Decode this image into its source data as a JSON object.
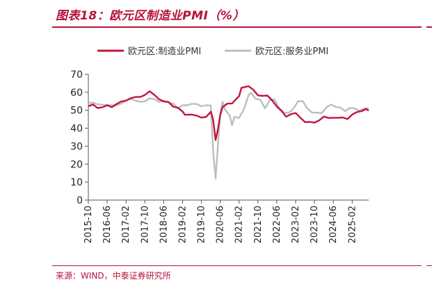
{
  "header": {
    "title": "图表18：欧元区制造业PMI（%）"
  },
  "footer": {
    "source": "来源：WIND，中泰证券研究所"
  },
  "colors": {
    "accent": "#b5123a",
    "manufacturing": "#c0143c",
    "services": "#bdbdbd"
  },
  "chart_data": {
    "type": "line",
    "title": "",
    "xlabel": "",
    "ylabel": "",
    "ylim": [
      0,
      70
    ],
    "yticks": [
      0,
      10,
      20,
      30,
      40,
      50,
      60,
      70
    ],
    "grid": false,
    "legend": "top",
    "xlim": [
      "2015-10",
      "2025-09"
    ],
    "x_ticks": [
      "2015-10",
      "2016-06",
      "2017-02",
      "2017-10",
      "2018-06",
      "2019-02",
      "2019-10",
      "2020-06",
      "2021-02",
      "2021-10",
      "2022-06",
      "2023-02",
      "2023-10",
      "2024-06",
      "2025-02"
    ],
    "series": [
      {
        "name": "欧元区:制造业PMI",
        "color": "#c0143c",
        "points": [
          [
            "2015-10",
            52.3
          ],
          [
            "2015-12",
            53.2
          ],
          [
            "2016-02",
            51.2
          ],
          [
            "2016-04",
            51.7
          ],
          [
            "2016-06",
            52.8
          ],
          [
            "2016-08",
            51.7
          ],
          [
            "2016-10",
            53.5
          ],
          [
            "2016-12",
            54.9
          ],
          [
            "2017-02",
            55.4
          ],
          [
            "2017-04",
            56.7
          ],
          [
            "2017-06",
            57.4
          ],
          [
            "2017-08",
            57.4
          ],
          [
            "2017-10",
            58.5
          ],
          [
            "2017-12",
            60.6
          ],
          [
            "2018-02",
            58.6
          ],
          [
            "2018-04",
            56.2
          ],
          [
            "2018-06",
            54.9
          ],
          [
            "2018-08",
            54.6
          ],
          [
            "2018-10",
            52.0
          ],
          [
            "2018-12",
            51.4
          ],
          [
            "2019-02",
            49.3
          ],
          [
            "2019-03",
            47.5
          ],
          [
            "2019-06",
            47.6
          ],
          [
            "2019-08",
            47.0
          ],
          [
            "2019-10",
            45.9
          ],
          [
            "2019-12",
            46.3
          ],
          [
            "2020-02",
            49.2
          ],
          [
            "2020-03",
            44.5
          ],
          [
            "2020-04",
            33.4
          ],
          [
            "2020-05",
            39.4
          ],
          [
            "2020-06",
            47.4
          ],
          [
            "2020-07",
            51.8
          ],
          [
            "2020-09",
            53.7
          ],
          [
            "2020-11",
            53.8
          ],
          [
            "2020-12",
            55.2
          ],
          [
            "2021-02",
            57.9
          ],
          [
            "2021-03",
            62.5
          ],
          [
            "2021-05",
            63.1
          ],
          [
            "2021-06",
            63.4
          ],
          [
            "2021-08",
            61.4
          ],
          [
            "2021-10",
            58.3
          ],
          [
            "2021-12",
            58.0
          ],
          [
            "2022-02",
            58.2
          ],
          [
            "2022-04",
            55.5
          ],
          [
            "2022-06",
            52.1
          ],
          [
            "2022-08",
            49.6
          ],
          [
            "2022-10",
            46.4
          ],
          [
            "2022-12",
            47.8
          ],
          [
            "2023-02",
            48.5
          ],
          [
            "2023-04",
            45.8
          ],
          [
            "2023-06",
            43.4
          ],
          [
            "2023-08",
            43.5
          ],
          [
            "2023-10",
            43.1
          ],
          [
            "2023-12",
            44.4
          ],
          [
            "2024-02",
            46.5
          ],
          [
            "2024-04",
            45.7
          ],
          [
            "2024-06",
            45.8
          ],
          [
            "2024-08",
            45.8
          ],
          [
            "2024-10",
            46.0
          ],
          [
            "2024-12",
            45.1
          ],
          [
            "2025-02",
            47.6
          ],
          [
            "2025-04",
            49.0
          ],
          [
            "2025-06",
            49.5
          ],
          [
            "2025-08",
            50.7
          ],
          [
            "2025-09",
            49.8
          ]
        ]
      },
      {
        "name": "欧元区:服务业PMI",
        "color": "#bdbdbd",
        "points": [
          [
            "2015-10",
            54.1
          ],
          [
            "2015-12",
            54.2
          ],
          [
            "2016-02",
            53.3
          ],
          [
            "2016-04",
            53.1
          ],
          [
            "2016-06",
            52.8
          ],
          [
            "2016-08",
            52.8
          ],
          [
            "2016-10",
            52.8
          ],
          [
            "2016-12",
            53.7
          ],
          [
            "2017-02",
            55.5
          ],
          [
            "2017-04",
            56.4
          ],
          [
            "2017-06",
            55.4
          ],
          [
            "2017-08",
            54.7
          ],
          [
            "2017-10",
            55.0
          ],
          [
            "2017-12",
            56.6
          ],
          [
            "2018-02",
            56.2
          ],
          [
            "2018-04",
            54.7
          ],
          [
            "2018-06",
            55.2
          ],
          [
            "2018-08",
            54.4
          ],
          [
            "2018-10",
            53.7
          ],
          [
            "2018-12",
            51.2
          ],
          [
            "2019-02",
            52.8
          ],
          [
            "2019-04",
            52.8
          ],
          [
            "2019-06",
            53.6
          ],
          [
            "2019-08",
            53.5
          ],
          [
            "2019-10",
            52.2
          ],
          [
            "2019-12",
            52.8
          ],
          [
            "2020-02",
            52.6
          ],
          [
            "2020-03",
            26.4
          ],
          [
            "2020-04",
            12.0
          ],
          [
            "2020-05",
            30.5
          ],
          [
            "2020-06",
            48.3
          ],
          [
            "2020-07",
            54.7
          ],
          [
            "2020-08",
            50.5
          ],
          [
            "2020-10",
            46.9
          ],
          [
            "2020-11",
            41.7
          ],
          [
            "2020-12",
            46.4
          ],
          [
            "2021-02",
            45.7
          ],
          [
            "2021-04",
            50.5
          ],
          [
            "2021-06",
            58.3
          ],
          [
            "2021-07",
            59.8
          ],
          [
            "2021-09",
            56.4
          ],
          [
            "2021-11",
            55.9
          ],
          [
            "2022-01",
            51.1
          ],
          [
            "2022-03",
            55.6
          ],
          [
            "2022-05",
            56.1
          ],
          [
            "2022-07",
            51.2
          ],
          [
            "2022-09",
            48.8
          ],
          [
            "2022-11",
            48.5
          ],
          [
            "2023-01",
            50.8
          ],
          [
            "2023-03",
            55.0
          ],
          [
            "2023-05",
            55.1
          ],
          [
            "2023-07",
            50.9
          ],
          [
            "2023-09",
            48.7
          ],
          [
            "2023-11",
            48.7
          ],
          [
            "2024-01",
            48.4
          ],
          [
            "2024-03",
            51.5
          ],
          [
            "2024-05",
            53.2
          ],
          [
            "2024-07",
            51.9
          ],
          [
            "2024-09",
            51.4
          ],
          [
            "2024-11",
            49.5
          ],
          [
            "2025-01",
            51.3
          ],
          [
            "2025-03",
            51.0
          ],
          [
            "2025-05",
            49.7
          ],
          [
            "2025-07",
            51.0
          ],
          [
            "2025-09",
            51.0
          ]
        ]
      }
    ]
  }
}
